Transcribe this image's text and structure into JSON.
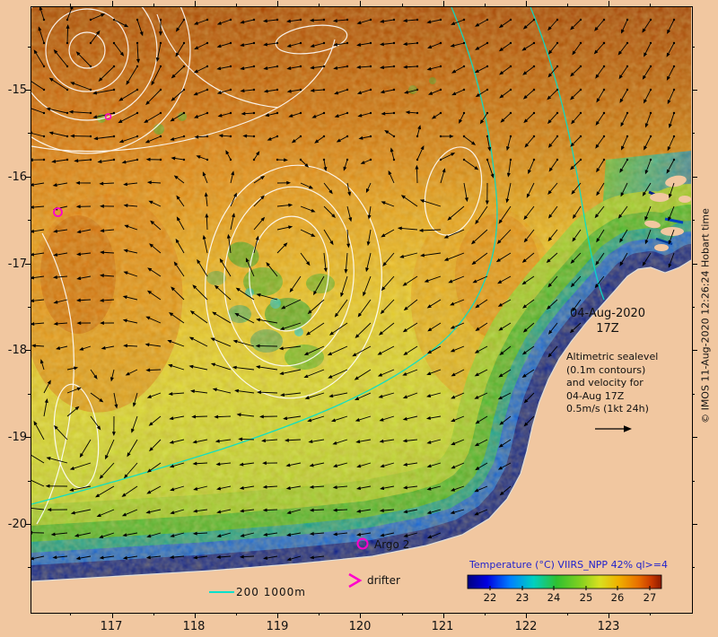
{
  "info": {
    "date_line1": "04-Aug-2020",
    "date_line2": "17Z",
    "annotation_lines": [
      "Altimetric sealevel",
      "(0.1m contours)",
      "and velocity for",
      "04-Aug 17Z",
      "0.5m/s (1kt 24h)"
    ],
    "copyright": "© IMOS 11-Aug-2020 12:26:24 Hobart time"
  },
  "markers": {
    "argo_label": "Argo 2",
    "drifter_label": "drifter",
    "bathy_label": "200 1000m"
  },
  "legend": {
    "title": "Temperature (°C) VIIRS_NPP 42% ql>=4",
    "ticks": [
      "22",
      "23",
      "24",
      "25",
      "26",
      "27"
    ]
  },
  "axes": {
    "x_ticks": [
      "117",
      "118",
      "119",
      "120",
      "121",
      "122",
      "123"
    ],
    "y_ticks": [
      "-15",
      "-16",
      "-17",
      "-18",
      "-19",
      "-20"
    ]
  },
  "colors": {
    "land": "#f1c7a0",
    "marker_magenta": "#ff00cc",
    "bathy_cyan": "#00e0cc",
    "legend_title_blue": "#2222cc",
    "contour_white": "#ffffff",
    "temp_scale": [
      "#000080",
      "#0000e0",
      "#0080ff",
      "#00d0c0",
      "#30c030",
      "#80d020",
      "#d8e020",
      "#f0b000",
      "#e87000",
      "#c83800",
      "#8b1a00"
    ]
  }
}
